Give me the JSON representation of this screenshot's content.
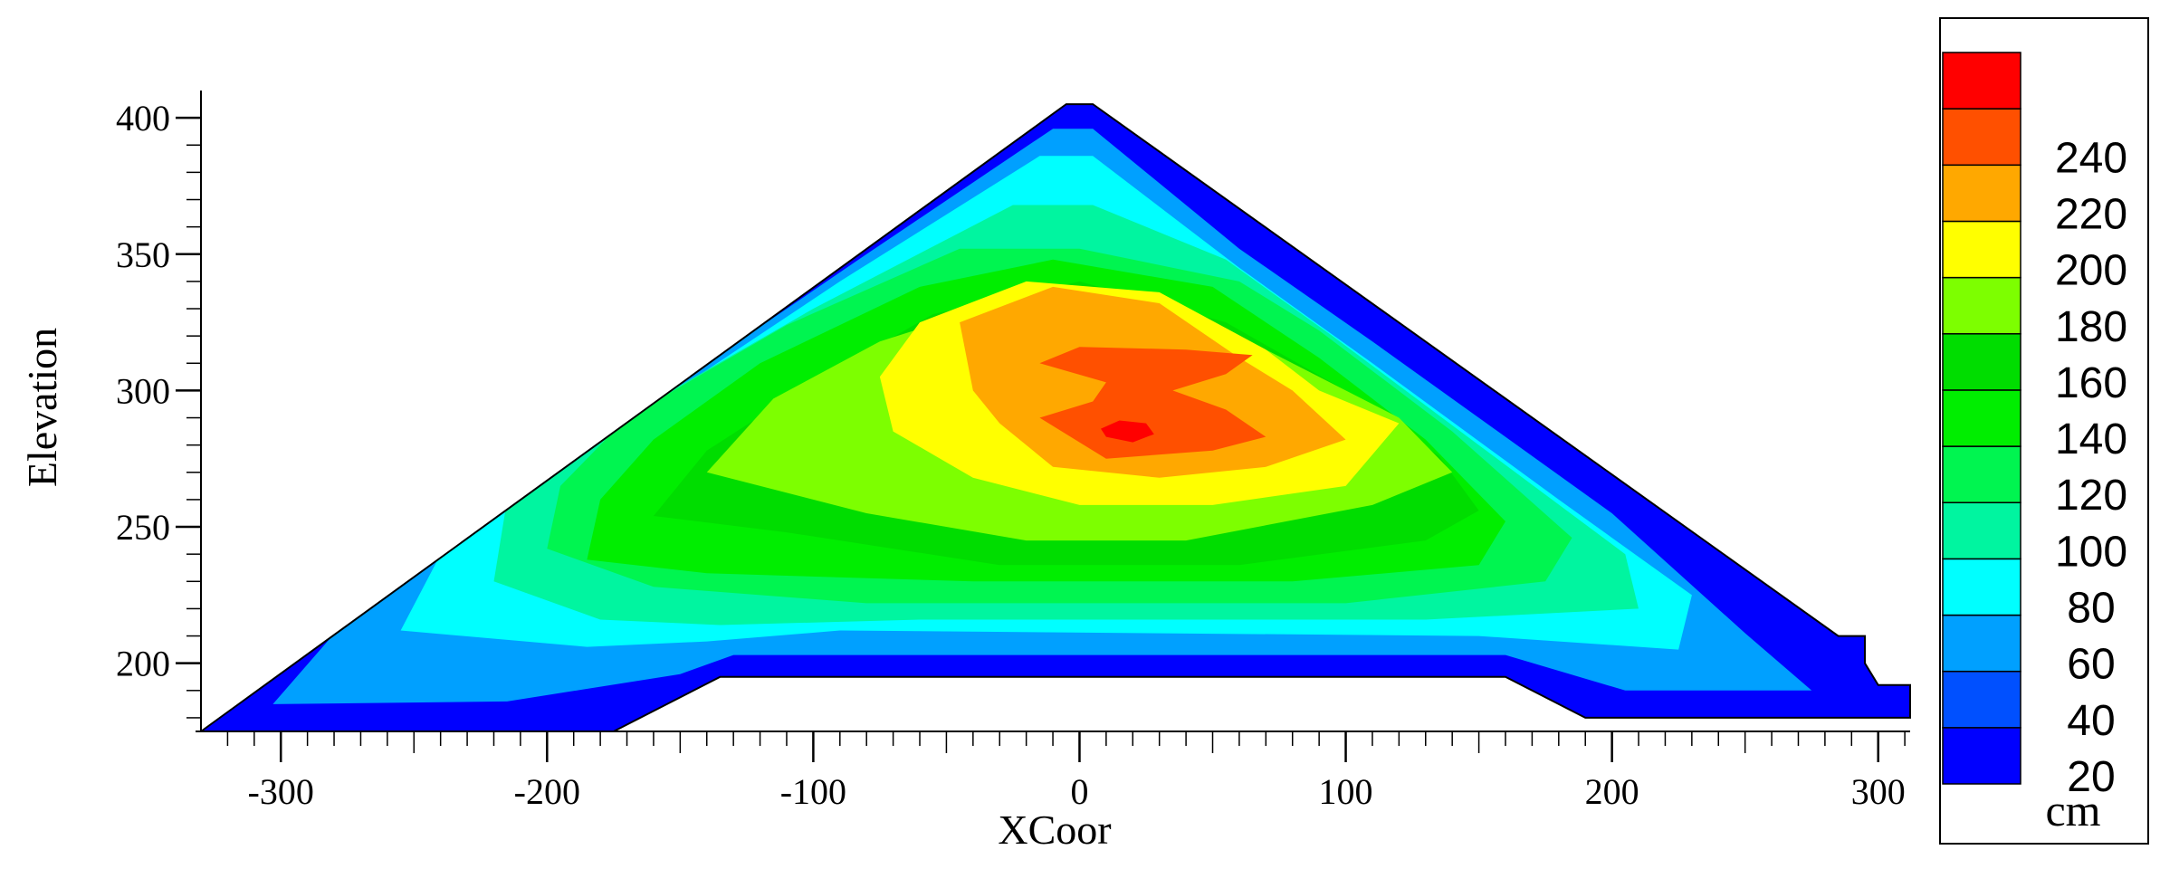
{
  "chart_data": {
    "type": "heatmap",
    "title": "",
    "xlabel": "XCoor",
    "ylabel": "Elevation",
    "xlim": [
      -330,
      312
    ],
    "ylim": [
      175,
      410
    ],
    "x_ticks": [
      -300,
      -200,
      -100,
      0,
      100,
      200,
      300
    ],
    "x_tick_labels": [
      "-300",
      "-200",
      "-100",
      "0",
      "100",
      "200",
      "300"
    ],
    "y_ticks": [
      200,
      250,
      300,
      350,
      400
    ],
    "y_tick_labels": [
      "200",
      "250",
      "300",
      "350",
      "400"
    ],
    "grid": false,
    "legend_position": "right",
    "colorbar": {
      "unit": "cm",
      "levels": [
        20,
        40,
        60,
        80,
        100,
        120,
        140,
        160,
        180,
        200,
        220,
        240
      ],
      "level_labels": [
        "20",
        "40",
        "60",
        "80",
        "100",
        "120",
        "140",
        "160",
        "180",
        "200",
        "220",
        "240"
      ],
      "colors": [
        "#0000ff",
        "#0050ff",
        "#00a0ff",
        "#00ffff",
        "#00f5a0",
        "#00f550",
        "#00ee00",
        "#00dd00",
        "#7dff00",
        "#ffff00",
        "#ffa800",
        "#ff5000",
        "#ff0000"
      ]
    },
    "dam_outline": [
      [
        -330,
        175
      ],
      [
        -5,
        405
      ],
      [
        5,
        405
      ],
      [
        285,
        210
      ],
      [
        295,
        210
      ],
      [
        295,
        200
      ],
      [
        300,
        192
      ],
      [
        312,
        192
      ],
      [
        312,
        180
      ],
      [
        190,
        180
      ],
      [
        160,
        195
      ],
      [
        -135,
        195
      ],
      [
        -175,
        175
      ]
    ],
    "contour_bands": [
      {
        "level": 40,
        "polygon": [
          [
            -303,
            185
          ],
          [
            -215,
            186
          ],
          [
            -150,
            196
          ],
          [
            -130,
            203
          ],
          [
            160,
            203
          ],
          [
            205,
            190
          ],
          [
            275,
            190
          ],
          [
            250,
            211
          ],
          [
            200,
            255
          ],
          [
            110,
            318
          ],
          [
            60,
            352
          ],
          [
            5,
            396
          ],
          [
            -10,
            396
          ],
          [
            -80,
            350
          ],
          [
            -200,
            270
          ],
          [
            -270,
            222
          ]
        ]
      },
      {
        "level": 60,
        "polygon": [
          [
            -255,
            212
          ],
          [
            -185,
            206
          ],
          [
            -140,
            208
          ],
          [
            -90,
            212
          ],
          [
            150,
            210
          ],
          [
            225,
            205
          ],
          [
            230,
            225
          ],
          [
            180,
            260
          ],
          [
            110,
            310
          ],
          [
            60,
            345
          ],
          [
            5,
            386
          ],
          [
            -15,
            386
          ],
          [
            -90,
            340
          ],
          [
            -190,
            275
          ],
          [
            -240,
            240
          ]
        ]
      },
      {
        "level": 80,
        "polygon": [
          [
            -220,
            230
          ],
          [
            -180,
            216
          ],
          [
            -135,
            214
          ],
          [
            -60,
            216
          ],
          [
            130,
            216
          ],
          [
            210,
            220
          ],
          [
            205,
            240
          ],
          [
            150,
            280
          ],
          [
            95,
            320
          ],
          [
            55,
            348
          ],
          [
            5,
            368
          ],
          [
            -25,
            368
          ],
          [
            -100,
            330
          ],
          [
            -180,
            285
          ],
          [
            -215,
            260
          ]
        ]
      },
      {
        "level": 100,
        "polygon": [
          [
            -200,
            242
          ],
          [
            -160,
            228
          ],
          [
            -80,
            222
          ],
          [
            100,
            222
          ],
          [
            175,
            230
          ],
          [
            185,
            246
          ],
          [
            140,
            285
          ],
          [
            90,
            322
          ],
          [
            60,
            340
          ],
          [
            0,
            352
          ],
          [
            -45,
            352
          ],
          [
            -110,
            324
          ],
          [
            -170,
            290
          ],
          [
            -195,
            265
          ]
        ]
      },
      {
        "level": 120,
        "polygon": [
          [
            -185,
            238
          ],
          [
            -140,
            233
          ],
          [
            -40,
            230
          ],
          [
            80,
            230
          ],
          [
            150,
            236
          ],
          [
            160,
            252
          ],
          [
            130,
            282
          ],
          [
            90,
            312
          ],
          [
            50,
            338
          ],
          [
            -10,
            348
          ],
          [
            -60,
            338
          ],
          [
            -120,
            310
          ],
          [
            -160,
            282
          ],
          [
            -180,
            260
          ]
        ]
      },
      {
        "level": 140,
        "polygon": [
          [
            -160,
            254
          ],
          [
            -110,
            248
          ],
          [
            -30,
            236
          ],
          [
            60,
            236
          ],
          [
            130,
            245
          ],
          [
            150,
            256
          ],
          [
            135,
            276
          ],
          [
            100,
            300
          ],
          [
            55,
            325
          ],
          [
            0,
            340
          ],
          [
            -55,
            328
          ],
          [
            -105,
            300
          ],
          [
            -140,
            278
          ]
        ]
      },
      {
        "level": 160,
        "polygon": [
          [
            -140,
            270
          ],
          [
            -80,
            255
          ],
          [
            -20,
            245
          ],
          [
            40,
            245
          ],
          [
            110,
            258
          ],
          [
            140,
            270
          ],
          [
            120,
            290
          ],
          [
            70,
            315
          ],
          [
            20,
            330
          ],
          [
            -30,
            332
          ],
          [
            -75,
            318
          ],
          [
            -115,
            297
          ]
        ]
      },
      {
        "level": 180,
        "polygon": [
          [
            -70,
            285
          ],
          [
            -40,
            268
          ],
          [
            0,
            258
          ],
          [
            50,
            258
          ],
          [
            100,
            265
          ],
          [
            120,
            288
          ],
          [
            90,
            300
          ],
          [
            70,
            315
          ],
          [
            30,
            336
          ],
          [
            -20,
            340
          ],
          [
            -60,
            325
          ],
          [
            -75,
            305
          ]
        ]
      },
      {
        "level": 200,
        "polygon": [
          [
            -30,
            288
          ],
          [
            -10,
            272
          ],
          [
            30,
            268
          ],
          [
            70,
            272
          ],
          [
            100,
            282
          ],
          [
            80,
            300
          ],
          [
            60,
            312
          ],
          [
            30,
            332
          ],
          [
            -10,
            338
          ],
          [
            -45,
            325
          ],
          [
            -40,
            300
          ]
        ]
      },
      {
        "level": 220,
        "polygon": [
          [
            -15,
            290
          ],
          [
            10,
            275
          ],
          [
            50,
            278
          ],
          [
            70,
            283
          ],
          [
            55,
            293
          ],
          [
            35,
            300
          ],
          [
            55,
            306
          ],
          [
            65,
            313
          ],
          [
            40,
            315
          ],
          [
            0,
            316
          ],
          [
            -15,
            310
          ],
          [
            10,
            303
          ],
          [
            5,
            296
          ]
        ]
      },
      {
        "level": 240,
        "polygon": [
          [
            10,
            283
          ],
          [
            20,
            281
          ],
          [
            28,
            284
          ],
          [
            25,
            288
          ],
          [
            15,
            289
          ],
          [
            8,
            286
          ]
        ]
      }
    ]
  }
}
